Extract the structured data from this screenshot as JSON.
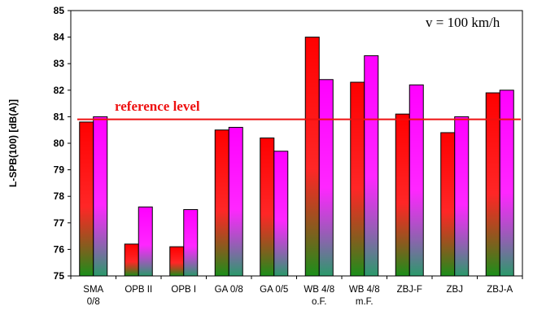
{
  "chart_data": {
    "type": "bar",
    "ylabel": "L-SPB(100) [dB(A)]",
    "ylim": [
      75,
      85
    ],
    "yticks": [
      75,
      76,
      77,
      78,
      79,
      80,
      81,
      82,
      83,
      84,
      85
    ],
    "categories": [
      [
        "SMA",
        "0/8"
      ],
      [
        "OPB II"
      ],
      [
        "OPB I"
      ],
      [
        "GA 0/8"
      ],
      [
        "GA 0/5"
      ],
      [
        "WB 4/8",
        "o.F."
      ],
      [
        "WB 4/8",
        "m.F."
      ],
      [
        "ZBJ-F"
      ],
      [
        "ZBJ"
      ],
      [
        "ZBJ-A"
      ]
    ],
    "series": [
      {
        "values": [
          80.8,
          76.2,
          76.1,
          80.5,
          80.2,
          84.0,
          82.3,
          81.1,
          80.4,
          81.9
        ],
        "top_color": "#ff0000",
        "bottom_color": "#1a8f1a"
      },
      {
        "values": [
          81.0,
          77.6,
          77.5,
          80.6,
          79.7,
          82.4,
          83.3,
          82.2,
          81.0,
          82.0
        ],
        "top_color": "#ff00ff",
        "bottom_color": "#2a9a6a"
      }
    ],
    "annotations": {
      "speed": "v = 100 km/h",
      "reference_label": "reference level",
      "reference_value": 80.9,
      "reference_color": "#ee1111"
    },
    "grid": false,
    "legend": "none"
  }
}
